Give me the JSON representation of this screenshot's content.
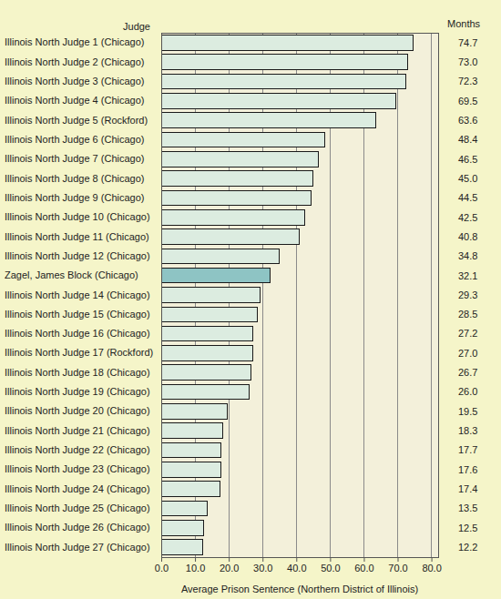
{
  "chart_data": {
    "type": "bar",
    "orientation": "horizontal",
    "y_label": "Judge",
    "x_label": "Average Prison Sentence (Northern District of Illinois)",
    "annotations": [
      "Months"
    ],
    "categories": [
      "Illinois North Judge 1 (Chicago)",
      "Illinois North Judge 2 (Chicago)",
      "Illinois North Judge 3 (Chicago)",
      "Illinois North Judge 4 (Chicago)",
      "Illinois North Judge 5 (Rockford)",
      "Illinois North Judge 6 (Chicago)",
      "Illinois North Judge 7 (Chicago)",
      "Illinois North Judge 8 (Chicago)",
      "Illinois North Judge 9 (Chicago)",
      "Illinois North Judge 10 (Chicago)",
      "Illinois North Judge 11 (Chicago)",
      "Illinois North Judge 12 (Chicago)",
      "Zagel, James Block (Chicago)",
      "Illinois North Judge 14 (Chicago)",
      "Illinois North Judge 15 (Chicago)",
      "Illinois North Judge 16 (Chicago)",
      "Illinois North Judge 17 (Rockford)",
      "Illinois North Judge 18 (Chicago)",
      "Illinois North Judge 19 (Chicago)",
      "Illinois North Judge 20 (Chicago)",
      "Illinois North Judge 21 (Chicago)",
      "Illinois North Judge 22 (Chicago)",
      "Illinois North Judge 23 (Chicago)",
      "Illinois North Judge 24 (Chicago)",
      "Illinois North Judge 25 (Chicago)",
      "Illinois North Judge 26 (Chicago)",
      "Illinois North Judge 27 (Chicago)"
    ],
    "values": [
      74.7,
      73.0,
      72.3,
      69.5,
      63.6,
      48.4,
      46.5,
      45.0,
      44.5,
      42.5,
      40.8,
      34.8,
      32.1,
      29.3,
      28.5,
      27.2,
      27.0,
      26.7,
      26.0,
      19.5,
      18.3,
      17.7,
      17.6,
      17.4,
      13.5,
      12.5,
      12.2
    ],
    "value_labels": [
      "74.7",
      "73.0",
      "72.3",
      "69.5",
      "63.6",
      "48.4",
      "46.5",
      "45.0",
      "44.5",
      "42.5",
      "40.8",
      "34.8",
      "32.1",
      "29.3",
      "28.5",
      "27.2",
      "27.0",
      "26.7",
      "26.0",
      "19.5",
      "18.3",
      "17.7",
      "17.6",
      "17.4",
      "13.5",
      "12.5",
      "12.2"
    ],
    "data_labels": true,
    "colors": [
      "#dcece0",
      "#dcece0",
      "#dcece0",
      "#dcece0",
      "#dcece0",
      "#dcece0",
      "#dcece0",
      "#dcece0",
      "#dcece0",
      "#dcece0",
      "#dcece0",
      "#dcece0",
      "#8ec4c4",
      "#dcece0",
      "#dcece0",
      "#dcece0",
      "#dcece0",
      "#dcece0",
      "#dcece0",
      "#dcece0",
      "#dcece0",
      "#dcece0",
      "#dcece0",
      "#dcece0",
      "#dcece0",
      "#dcece0",
      "#dcece0"
    ],
    "xlim": [
      0,
      82
    ],
    "xticks": [
      {
        "value": 0,
        "label": "0.0"
      },
      {
        "value": 10,
        "label": "10.0"
      },
      {
        "value": 20,
        "label": "20.0"
      },
      {
        "value": 30,
        "label": "30.0"
      },
      {
        "value": 40,
        "label": "40.0"
      },
      {
        "value": 50,
        "label": "50.0"
      },
      {
        "value": 60,
        "label": "60.0"
      },
      {
        "value": 70,
        "label": "70.0"
      },
      {
        "value": 80,
        "label": "80.0"
      }
    ],
    "grid": true
  }
}
